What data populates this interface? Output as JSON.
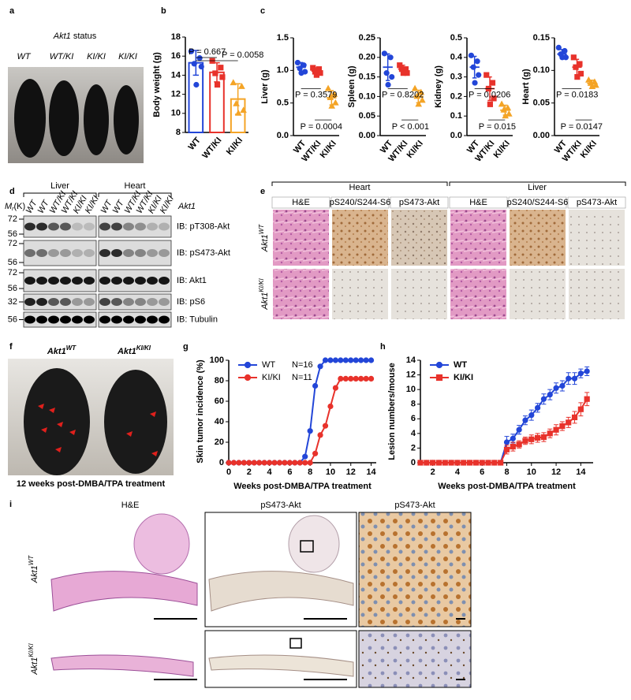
{
  "panel_labels": [
    "a",
    "b",
    "c",
    "d",
    "e",
    "f",
    "g",
    "h",
    "i"
  ],
  "panel_a": {
    "title_gene": "Akt1",
    "title_rest": "status",
    "genotypes": [
      "WT",
      "WT/KI",
      "KI/KI",
      "KI/KI"
    ]
  },
  "chart_data": [
    {
      "type": "bar",
      "ylabel": "Body weight (g)",
      "categories": [
        "WT",
        "WT/KI",
        "KI/KI"
      ],
      "colors": [
        "#2346d8",
        "#e8322b",
        "#f4a426"
      ],
      "markers": [
        "circle",
        "square",
        "triangle"
      ],
      "values": [
        15.3,
        14.3,
        11.5
      ],
      "errors": [
        1.3,
        1.0,
        1.6
      ],
      "points": [
        [
          16.5,
          15.8,
          15.2,
          14.9,
          13.0
        ],
        [
          15.5,
          14.8,
          14.2,
          13.8,
          13.0
        ],
        [
          13.2,
          12.8,
          11.0,
          10.3,
          10.0
        ]
      ],
      "ylim": [
        8,
        18
      ],
      "yticks": [
        8,
        10,
        12,
        14,
        16,
        18
      ],
      "annotations": [
        "P = 0.667",
        "P = 0.0058"
      ]
    },
    {
      "type": "dot",
      "ylabel": "Liver (g)",
      "categories": [
        "WT",
        "WT/KI",
        "KI/KI"
      ],
      "colors": [
        "#2346d8",
        "#e8322b",
        "#f4a426"
      ],
      "markers": [
        "circle",
        "square",
        "triangle"
      ],
      "values": [
        1.05,
        0.99,
        0.58
      ],
      "errors": [
        0.07,
        0.05,
        0.11
      ],
      "points": [
        [
          1.12,
          1.08,
          1.03,
          0.98,
          0.96
        ],
        [
          1.04,
          1.02,
          0.98,
          0.96,
          0.93
        ],
        [
          0.72,
          0.63,
          0.58,
          0.5,
          0.45
        ]
      ],
      "ylim": [
        0,
        1.5
      ],
      "yticks": [
        {
          "value": 0,
          "label": "0.0"
        },
        0.5,
        {
          "value": 1,
          "label": "1.0"
        },
        1.5
      ],
      "annotations": [
        "P = 0.3579",
        "P = 0.0004"
      ]
    },
    {
      "type": "dot",
      "ylabel": "Spleen (g)",
      "categories": [
        "WT",
        "WT/KI",
        "KI/KI"
      ],
      "colors": [
        "#2346d8",
        "#e8322b",
        "#f4a426"
      ],
      "markers": [
        "circle",
        "square",
        "triangle"
      ],
      "values": [
        0.175,
        0.17,
        0.1
      ],
      "errors": [
        0.034,
        0.01,
        0.016
      ],
      "points": [
        [
          0.21,
          0.2,
          0.16,
          0.15,
          0.13
        ],
        [
          0.18,
          0.17,
          0.17,
          0.16,
          0.16
        ],
        [
          0.12,
          0.11,
          0.1,
          0.09,
          0.08
        ]
      ],
      "ylim": [
        0,
        0.25
      ],
      "yticks": [
        {
          "value": 0,
          "label": "0.00"
        },
        0.05,
        {
          "value": 0.1,
          "label": "0.10"
        },
        0.15,
        {
          "value": 0.2,
          "label": "0.20"
        },
        0.25
      ],
      "annotations": [
        "P = 0.8202",
        "P < 0.001"
      ]
    },
    {
      "type": "dot",
      "ylabel": "Kidney (g)",
      "categories": [
        "WT",
        "WT/KI",
        "KI/KI"
      ],
      "colors": [
        "#2346d8",
        "#e8322b",
        "#f4a426"
      ],
      "markers": [
        "circle",
        "square",
        "triangle"
      ],
      "values": [
        0.35,
        0.24,
        0.13
      ],
      "errors": [
        0.055,
        0.06,
        0.025
      ],
      "points": [
        [
          0.41,
          0.38,
          0.35,
          0.31,
          0.27
        ],
        [
          0.31,
          0.27,
          0.24,
          0.19,
          0.16
        ],
        [
          0.16,
          0.14,
          0.13,
          0.11,
          0.1
        ]
      ],
      "ylim": [
        0,
        0.5
      ],
      "yticks": [
        {
          "value": 0,
          "label": "0.0"
        },
        0.1,
        0.2,
        0.3,
        0.4,
        0.5
      ],
      "annotations": [
        "P = 0.0206",
        "P = 0.015"
      ]
    },
    {
      "type": "dot",
      "ylabel": "Heart (g)",
      "categories": [
        "WT",
        "WT/KI",
        "KI/KI"
      ],
      "colors": [
        "#2346d8",
        "#e8322b",
        "#f4a426"
      ],
      "markers": [
        "circle",
        "square",
        "triangle"
      ],
      "values": [
        0.125,
        0.105,
        0.08
      ],
      "errors": [
        0.007,
        0.012,
        0.005
      ],
      "points": [
        [
          0.135,
          0.13,
          0.125,
          0.12,
          0.12
        ],
        [
          0.12,
          0.11,
          0.105,
          0.095,
          0.09
        ],
        [
          0.085,
          0.082,
          0.08,
          0.077,
          0.075
        ]
      ],
      "ylim": [
        0,
        0.15
      ],
      "yticks": [
        {
          "value": 0,
          "label": "0.00"
        },
        0.05,
        {
          "value": 0.1,
          "label": "0.10"
        },
        0.15
      ],
      "annotations": [
        "P = 0.0183",
        "P = 0.0147"
      ]
    },
    {
      "type": "line",
      "ylabel": "Skin tumor incidence (%)",
      "xlabel": "Weeks post-DMBA/TPA treatment",
      "x": [
        0,
        0.5,
        1,
        1.5,
        2,
        2.5,
        3,
        3.5,
        4,
        4.5,
        5,
        5.5,
        6,
        6.5,
        7,
        7.5,
        8,
        8.5,
        9,
        9.5,
        10,
        10.5,
        11,
        11.5,
        12,
        12.5,
        13,
        13.5,
        14
      ],
      "series": [
        {
          "name": "WT",
          "n_label": "N=16",
          "color": "#2346d8",
          "marker": "circle",
          "values": [
            0,
            0,
            0,
            0,
            0,
            0,
            0,
            0,
            0,
            0,
            0,
            0,
            0,
            0,
            0,
            6,
            31,
            75,
            94,
            100,
            100,
            100,
            100,
            100,
            100,
            100,
            100,
            100,
            100
          ]
        },
        {
          "name": "KI/KI",
          "n_label": "N=11",
          "color": "#e8322b",
          "marker": "circle",
          "values": [
            0,
            0,
            0,
            0,
            0,
            0,
            0,
            0,
            0,
            0,
            0,
            0,
            0,
            0,
            0,
            0,
            0,
            9,
            27,
            36,
            55,
            73,
            82,
            82,
            82,
            82,
            82,
            82,
            82
          ]
        }
      ],
      "xlim": [
        0,
        14.5
      ],
      "xticks": [
        0,
        2,
        4,
        6,
        8,
        10,
        12,
        14
      ],
      "ylim": [
        0,
        100
      ],
      "yticks": [
        0,
        20,
        40,
        60,
        80,
        100
      ]
    },
    {
      "type": "line",
      "ylabel": "Lesion numbers/mouse",
      "xlabel": "Weeks post-DMBA/TPA treatment",
      "x": [
        1,
        1.5,
        2,
        2.5,
        3,
        3.5,
        4,
        4.5,
        5,
        5.5,
        6,
        6.5,
        7,
        7.5,
        8,
        8.5,
        9,
        9.5,
        10,
        10.5,
        11,
        11.5,
        12,
        12.5,
        13,
        13.5,
        14,
        14.5
      ],
      "series": [
        {
          "name": "WT",
          "color": "#2346d8",
          "marker": "circle",
          "values": [
            0,
            0,
            0,
            0,
            0,
            0,
            0,
            0,
            0,
            0,
            0,
            0,
            0,
            0,
            2.8,
            3.3,
            4.5,
            5.8,
            6.5,
            7.5,
            8.7,
            9.3,
            10.2,
            10.5,
            11.5,
            11.5,
            12.2,
            12.5
          ],
          "errors": [
            0,
            0,
            0,
            0,
            0,
            0,
            0,
            0,
            0,
            0,
            0,
            0,
            0,
            0,
            0.8,
            0.6,
            0.6,
            0.6,
            0.7,
            0.6,
            0.7,
            0.7,
            0.7,
            0.7,
            0.8,
            0.8,
            0.6,
            0.6
          ]
        },
        {
          "name": "KI/KI",
          "color": "#e8322b",
          "marker": "square",
          "values": [
            0,
            0,
            0,
            0,
            0,
            0,
            0,
            0,
            0,
            0,
            0,
            0,
            0,
            0,
            1.8,
            2.2,
            2.5,
            3.0,
            3.2,
            3.4,
            3.5,
            4.0,
            4.5,
            5.0,
            5.5,
            6.2,
            7.3,
            8.7
          ],
          "errors": [
            0,
            0,
            0,
            0,
            0,
            0,
            0,
            0,
            0,
            0,
            0,
            0,
            0,
            0,
            0.6,
            0.6,
            0.5,
            0.5,
            0.6,
            0.6,
            0.6,
            0.6,
            0.7,
            0.6,
            0.7,
            0.8,
            0.9,
            0.9
          ]
        }
      ],
      "xlim": [
        1,
        15
      ],
      "xticks": [
        2,
        4,
        6,
        8,
        10,
        12,
        14
      ],
      "ylim": [
        0,
        14
      ],
      "yticks": [
        0,
        2,
        4,
        6,
        8,
        10,
        12,
        14
      ]
    }
  ],
  "panel_d": {
    "groups": [
      "Liver",
      "Heart"
    ],
    "mr_label": "M",
    "mr_sub": "r",
    "mr_unit": "(K)",
    "lanes": [
      "WT",
      "WT",
      "WT/KI",
      "WT/KI",
      "KI/KI",
      "KI/KI"
    ],
    "gene": "Akt1",
    "blots": [
      {
        "label": "IB: pT308-Akt",
        "markers": [
          72,
          56
        ]
      },
      {
        "label": "IB: pS473-Akt",
        "markers": [
          72,
          56
        ]
      },
      {
        "label": "IB: Akt1",
        "markers": [
          72,
          56
        ]
      },
      {
        "label": "IB: pS6",
        "markers": [
          32
        ]
      },
      {
        "label": "IB: Tubulin",
        "markers": [
          56
        ]
      }
    ]
  },
  "panel_e": {
    "tissues": [
      "Heart",
      "Liver"
    ],
    "stains": [
      "H&E",
      "pS240/S244-S6",
      "pS473-Akt"
    ],
    "rows": [
      {
        "gene": "Akt1",
        "genotype": "WT"
      },
      {
        "gene": "Akt1",
        "genotype": "KI/KI"
      }
    ]
  },
  "panel_f": {
    "mice": [
      {
        "gene": "Akt1",
        "genotype": "WT"
      },
      {
        "gene": "Akt1",
        "genotype": "KI/KI"
      }
    ],
    "caption": "12 weeks post-DMBA/TPA treatment"
  },
  "panel_i": {
    "columns": [
      "H&E",
      "pS473-Akt",
      "pS473-Akt"
    ],
    "rows": [
      {
        "gene": "Akt1",
        "genotype": "WT"
      },
      {
        "gene": "Akt1",
        "genotype": "KI/KI"
      }
    ]
  }
}
